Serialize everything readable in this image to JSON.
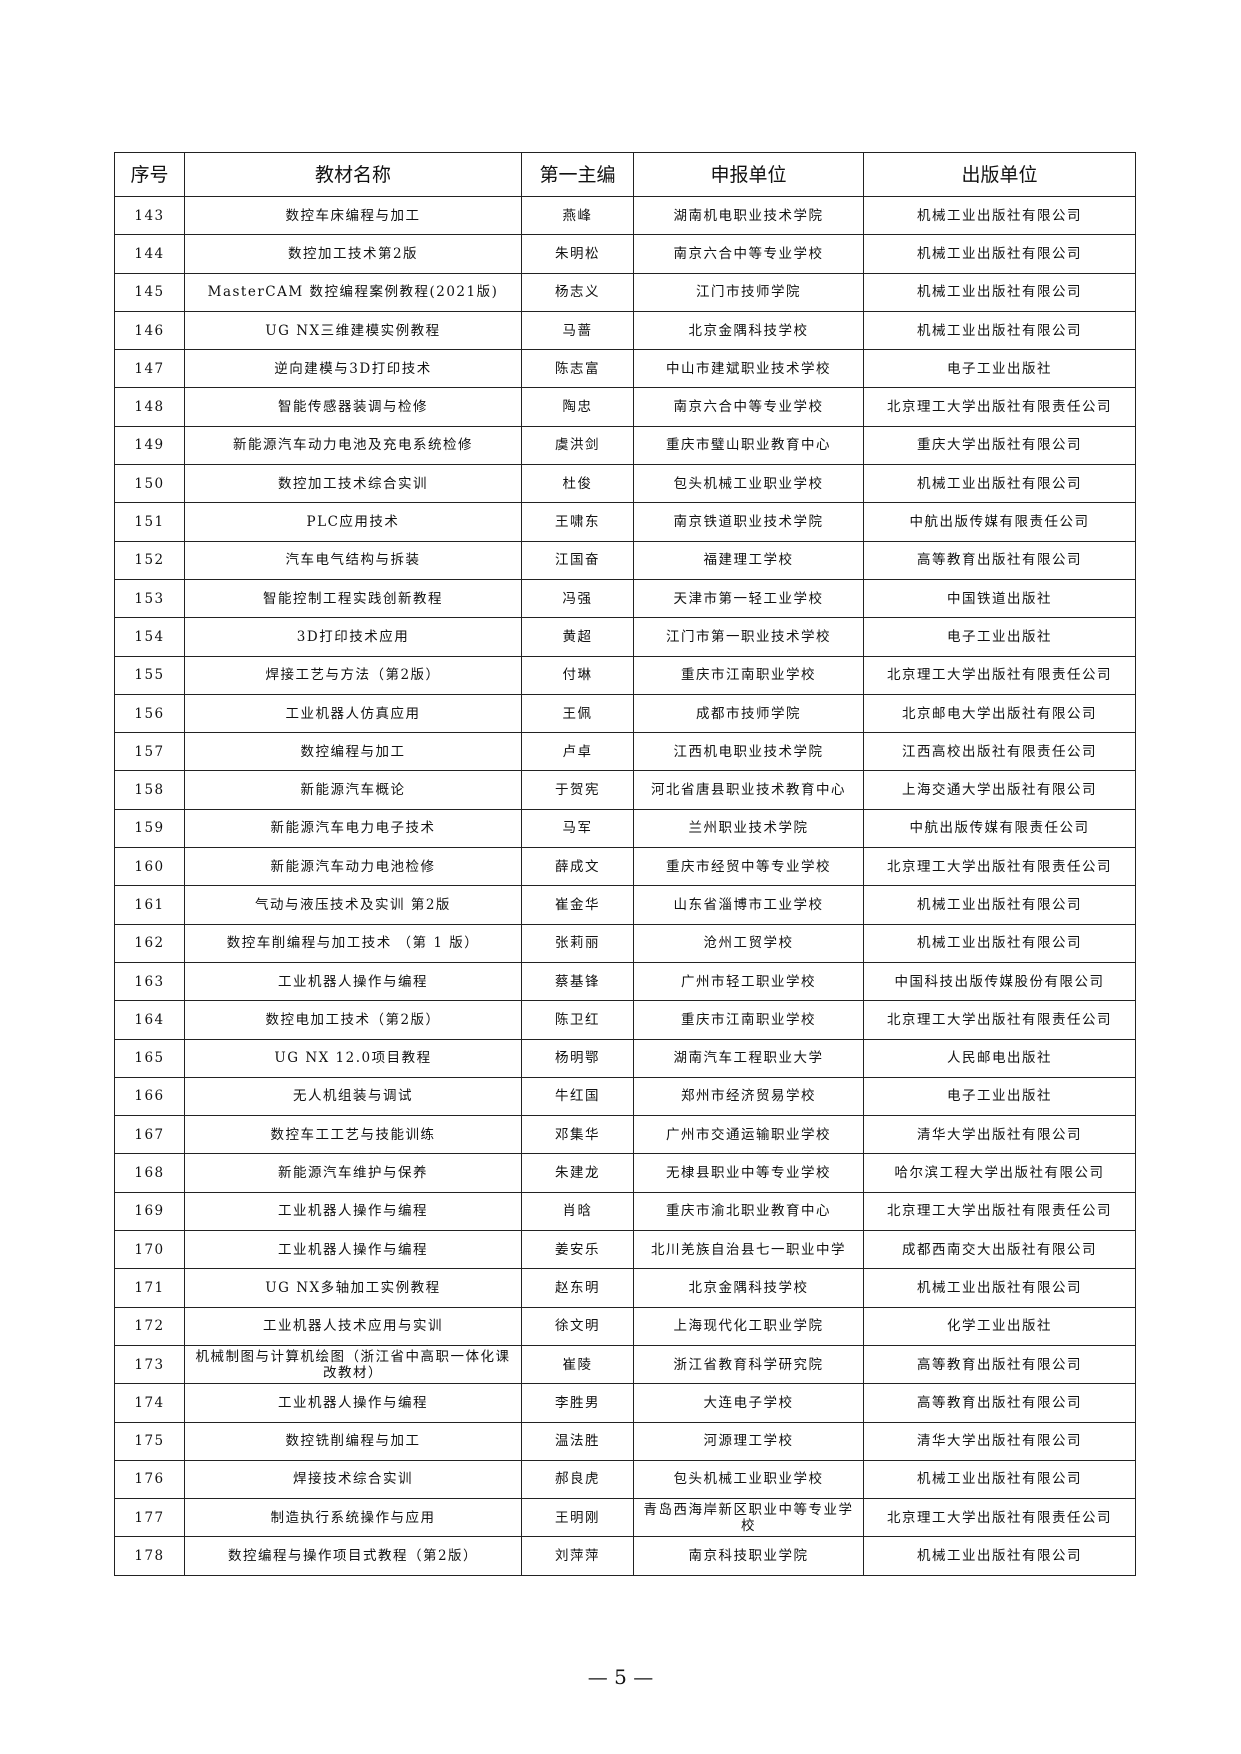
{
  "table": {
    "headers": [
      "序号",
      "教材名称",
      "第一主编",
      "申报单位",
      "出版单位"
    ],
    "rows": [
      [
        "143",
        "数控车床编程与加工",
        "燕峰",
        "湖南机电职业技术学院",
        "机械工业出版社有限公司"
      ],
      [
        "144",
        "数控加工技术第2版",
        "朱明松",
        "南京六合中等专业学校",
        "机械工业出版社有限公司"
      ],
      [
        "145",
        "MasterCAM 数控编程案例教程(2021版)",
        "杨志义",
        "江门市技师学院",
        "机械工业出版社有限公司"
      ],
      [
        "146",
        "UG NX三维建模实例教程",
        "马蔷",
        "北京金隅科技学校",
        "机械工业出版社有限公司"
      ],
      [
        "147",
        "逆向建模与3D打印技术",
        "陈志富",
        "中山市建斌职业技术学校",
        "电子工业出版社"
      ],
      [
        "148",
        "智能传感器装调与检修",
        "陶忠",
        "南京六合中等专业学校",
        "北京理工大学出版社有限责任公司"
      ],
      [
        "149",
        "新能源汽车动力电池及充电系统检修",
        "虞洪剑",
        "重庆市璧山职业教育中心",
        "重庆大学出版社有限公司"
      ],
      [
        "150",
        "数控加工技术综合实训",
        "杜俊",
        "包头机械工业职业学校",
        "机械工业出版社有限公司"
      ],
      [
        "151",
        "PLC应用技术",
        "王啸东",
        "南京铁道职业技术学院",
        "中航出版传媒有限责任公司"
      ],
      [
        "152",
        "汽车电气结构与拆装",
        "江国奋",
        "福建理工学校",
        "高等教育出版社有限公司"
      ],
      [
        "153",
        "智能控制工程实践创新教程",
        "冯强",
        "天津市第一轻工业学校",
        "中国铁道出版社"
      ],
      [
        "154",
        "3D打印技术应用",
        "黄超",
        "江门市第一职业技术学校",
        "电子工业出版社"
      ],
      [
        "155",
        "焊接工艺与方法（第2版）",
        "付琳",
        "重庆市江南职业学校",
        "北京理工大学出版社有限责任公司"
      ],
      [
        "156",
        "工业机器人仿真应用",
        "王佩",
        "成都市技师学院",
        "北京邮电大学出版社有限公司"
      ],
      [
        "157",
        "数控编程与加工",
        "卢卓",
        "江西机电职业技术学院",
        "江西高校出版社有限责任公司"
      ],
      [
        "158",
        "新能源汽车概论",
        "于贺宪",
        "河北省唐县职业技术教育中心",
        "上海交通大学出版社有限公司"
      ],
      [
        "159",
        "新能源汽车电力电子技术",
        "马军",
        "兰州职业技术学院",
        "中航出版传媒有限责任公司"
      ],
      [
        "160",
        "新能源汽车动力电池检修",
        "薛成文",
        "重庆市经贸中等专业学校",
        "北京理工大学出版社有限责任公司"
      ],
      [
        "161",
        "气动与液压技术及实训 第2版",
        "崔金华",
        "山东省淄博市工业学校",
        "机械工业出版社有限公司"
      ],
      [
        "162",
        "数控车削编程与加工技术 （第 1 版）",
        "张莉丽",
        "沧州工贸学校",
        "机械工业出版社有限公司"
      ],
      [
        "163",
        "工业机器人操作与编程",
        "蔡基锋",
        "广州市轻工职业学校",
        "中国科技出版传媒股份有限公司"
      ],
      [
        "164",
        "数控电加工技术（第2版）",
        "陈卫红",
        "重庆市江南职业学校",
        "北京理工大学出版社有限责任公司"
      ],
      [
        "165",
        "UG NX 12.0项目教程",
        "杨明鄂",
        "湖南汽车工程职业大学",
        "人民邮电出版社"
      ],
      [
        "166",
        "无人机组装与调试",
        "牛红国",
        "郑州市经济贸易学校",
        "电子工业出版社"
      ],
      [
        "167",
        "数控车工工艺与技能训练",
        "邓集华",
        "广州市交通运输职业学校",
        "清华大学出版社有限公司"
      ],
      [
        "168",
        "新能源汽车维护与保养",
        "朱建龙",
        "无棣县职业中等专业学校",
        "哈尔滨工程大学出版社有限公司"
      ],
      [
        "169",
        "工业机器人操作与编程",
        "肖晗",
        "重庆市渝北职业教育中心",
        "北京理工大学出版社有限责任公司"
      ],
      [
        "170",
        "工业机器人操作与编程",
        "姜安乐",
        "北川羌族自治县七一职业中学",
        "成都西南交大出版社有限公司"
      ],
      [
        "171",
        "UG NX多轴加工实例教程",
        "赵东明",
        "北京金隅科技学校",
        "机械工业出版社有限公司"
      ],
      [
        "172",
        "工业机器人技术应用与实训",
        "徐文明",
        "上海现代化工职业学院",
        "化学工业出版社"
      ],
      [
        "173",
        "机械制图与计算机绘图（浙江省中高职一体化课改教材）",
        "崔陵",
        "浙江省教育科学研究院",
        "高等教育出版社有限公司"
      ],
      [
        "174",
        "工业机器人操作与编程",
        "李胜男",
        "大连电子学校",
        "高等教育出版社有限公司"
      ],
      [
        "175",
        "数控铣削编程与加工",
        "温法胜",
        "河源理工学校",
        "清华大学出版社有限公司"
      ],
      [
        "176",
        "焊接技术综合实训",
        "郝良虎",
        "包头机械工业职业学校",
        "机械工业出版社有限公司"
      ],
      [
        "177",
        "制造执行系统操作与应用",
        "王明刚",
        "青岛西海岸新区职业中等专业学校",
        "北京理工大学出版社有限责任公司"
      ],
      [
        "178",
        "数控编程与操作项目式教程（第2版）",
        "刘萍萍",
        "南京科技职业学院",
        "机械工业出版社有限公司"
      ]
    ]
  },
  "footer": {
    "page_number": "— 5 —"
  }
}
